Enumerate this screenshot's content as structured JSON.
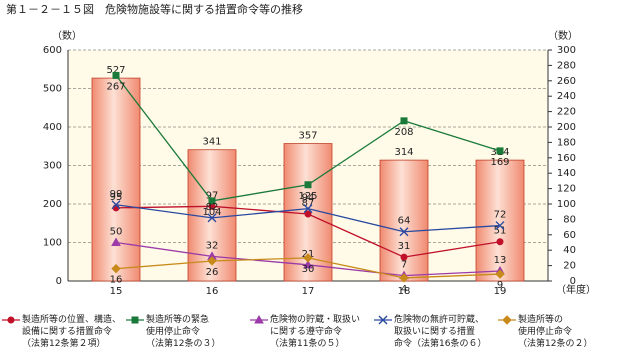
{
  "chart_data": {
    "type": "bar-line",
    "title": "第１－２－１５図　危険物施設等に関する措置命令等の推移",
    "y_label": "（数）",
    "y2_label": "（数）",
    "x_label": "（年度）",
    "categories": [
      "15",
      "16",
      "17",
      "18",
      "19"
    ],
    "ylim": [
      0,
      600
    ],
    "yticks": [
      0,
      100,
      200,
      300,
      400,
      500,
      600
    ],
    "y2lim": [
      0,
      300
    ],
    "y2ticks": [
      0,
      20,
      40,
      60,
      80,
      100,
      120,
      140,
      160,
      180,
      200,
      220,
      240,
      260,
      280,
      300
    ],
    "grid": true,
    "bars": {
      "color": "#f4a48c",
      "values": [
        527,
        341,
        357,
        314,
        314
      ]
    },
    "series": [
      {
        "name": "製造所等の位置、構造、\n設備に関する措置命令\n（法第12条第２項）",
        "color": "#c0102a",
        "marker": "circle",
        "axis": "y2",
        "values": [
          95,
          97,
          87,
          31,
          51
        ]
      },
      {
        "name": "製造所等の緊急\n使用停止命令\n（法第12条の３）",
        "color": "#1a7a3a",
        "marker": "square",
        "axis": "y2",
        "values": [
          267,
          104,
          125,
          208,
          169
        ]
      },
      {
        "name": "危険物の貯蔵・取扱い\nに関する遵守命令\n（法第11条の５）",
        "color": "#9b3aa8",
        "marker": "triangle",
        "axis": "y2",
        "values": [
          50,
          32,
          21,
          7,
          13
        ]
      },
      {
        "name": "危険物の無許可貯蔵、\n取扱いに関する措置\n命令（法第16条の６）",
        "color": "#2a4aa0",
        "marker": "cross",
        "axis": "y2",
        "values": [
          99,
          82,
          94,
          64,
          72
        ]
      },
      {
        "name": "製造所等の\n使用停止命令\n（法第12条の２）",
        "color": "#c88a1a",
        "marker": "diamond",
        "axis": "y2",
        "values": [
          16,
          26,
          30,
          4,
          9
        ]
      }
    ]
  }
}
